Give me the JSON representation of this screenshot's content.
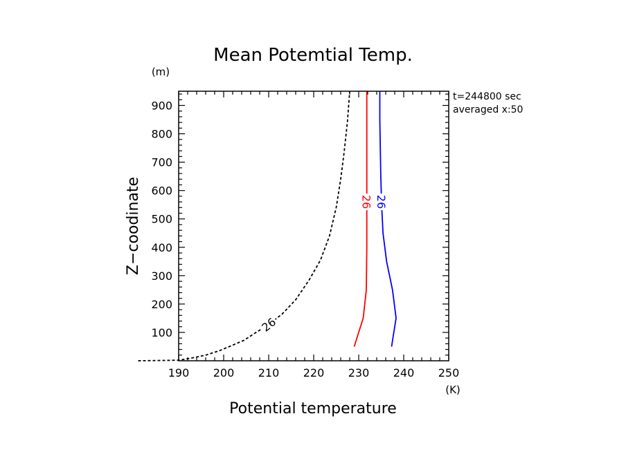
{
  "chart_data": {
    "type": "line",
    "title": "Mean Potemtial Temp.",
    "xlabel": "Potential temperature",
    "ylabel": "Z−coodinate",
    "x_unit": "(K)",
    "y_unit": "(m)",
    "xlim": [
      190,
      250
    ],
    "ylim": [
      0,
      950
    ],
    "x_ticks": [
      "190",
      "200",
      "210",
      "220",
      "230",
      "240",
      "250"
    ],
    "y_ticks": [
      "100",
      "200",
      "300",
      "400",
      "500",
      "600",
      "700",
      "800",
      "900"
    ],
    "annotations": [
      "t=244800 sec",
      "averaged  x:50"
    ],
    "series": [
      {
        "label": "26",
        "color": "#000000",
        "dashed": true,
        "points": [
          [
            181,
            0
          ],
          [
            190,
            2
          ],
          [
            193,
            10
          ],
          [
            196,
            20
          ],
          [
            199,
            35
          ],
          [
            202,
            55
          ],
          [
            204.5,
            72
          ],
          [
            207,
            98
          ],
          [
            210,
            128
          ],
          [
            213,
            165
          ],
          [
            216,
            215
          ],
          [
            219,
            285
          ],
          [
            221.5,
            355
          ],
          [
            223.5,
            440
          ],
          [
            225,
            540
          ],
          [
            226,
            640
          ],
          [
            226.8,
            740
          ],
          [
            227.5,
            845
          ],
          [
            228,
            950
          ]
        ]
      },
      {
        "label": "26",
        "color": "#ff0000",
        "dashed": false,
        "points": [
          [
            229,
            50
          ],
          [
            230,
            100
          ],
          [
            231,
            150
          ],
          [
            231.7,
            250
          ],
          [
            231.8,
            400
          ],
          [
            231.8,
            550
          ],
          [
            231.8,
            700
          ],
          [
            231.8,
            850
          ],
          [
            231.8,
            950
          ]
        ]
      },
      {
        "label": "26",
        "color": "#0000ff",
        "dashed": false,
        "points": [
          [
            237.3,
            50
          ],
          [
            237.8,
            100
          ],
          [
            238.3,
            150
          ],
          [
            237.5,
            250
          ],
          [
            236.2,
            350
          ],
          [
            235.4,
            450
          ],
          [
            235.1,
            550
          ],
          [
            234.9,
            650
          ],
          [
            234.8,
            750
          ],
          [
            234.7,
            850
          ],
          [
            234.7,
            950
          ]
        ]
      }
    ],
    "contour_labels": [
      {
        "text": "26",
        "series": 0,
        "at": [
          210,
          128
        ]
      },
      {
        "text": "26",
        "series": 1,
        "at": [
          231.8,
          560
        ]
      },
      {
        "text": "26",
        "series": 2,
        "at": [
          235.1,
          560
        ]
      }
    ]
  }
}
